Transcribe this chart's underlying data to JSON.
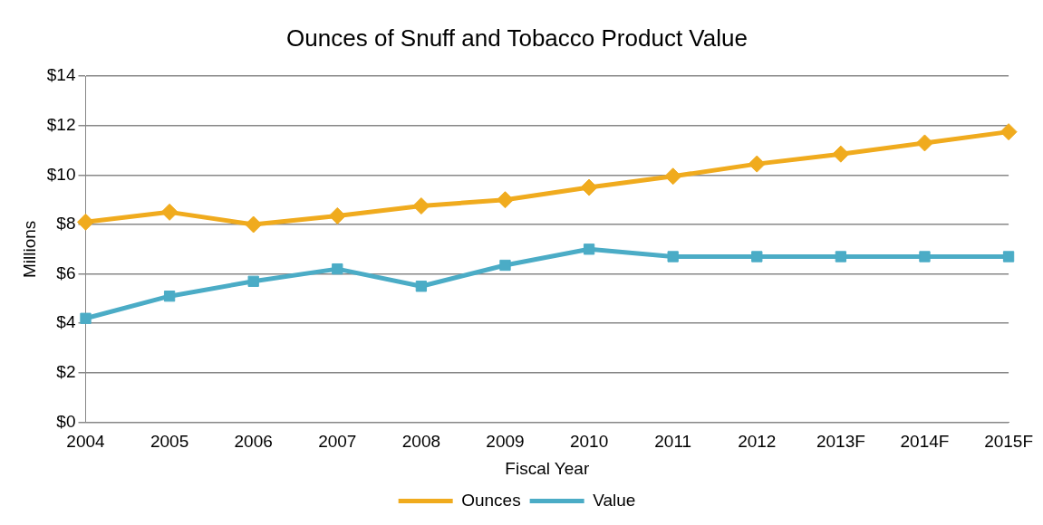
{
  "chart_data": {
    "type": "line",
    "title": "Ounces of Snuff and Tobacco Product Value",
    "xlabel": "Fiscal Year",
    "ylabel": "Millions",
    "categories": [
      "2004",
      "2005",
      "2006",
      "2007",
      "2008",
      "2009",
      "2010",
      "2011",
      "2012",
      "2013F",
      "2014F",
      "2015F"
    ],
    "series": [
      {
        "name": "Ounces",
        "color": "#f0ab1e",
        "marker": "diamond",
        "values": [
          8.1,
          8.5,
          8.0,
          8.35,
          8.75,
          9.0,
          9.5,
          9.95,
          10.45,
          10.85,
          11.3,
          11.75
        ]
      },
      {
        "name": "Value",
        "color": "#4bacc6",
        "marker": "square",
        "values": [
          4.2,
          5.1,
          5.7,
          6.2,
          5.5,
          6.35,
          7.0,
          6.7,
          6.7,
          6.7,
          6.7,
          6.7
        ]
      }
    ],
    "ylim": [
      0,
      14
    ],
    "yticks": [
      {
        "value": 0,
        "label": "$0"
      },
      {
        "value": 2,
        "label": "$2"
      },
      {
        "value": 4,
        "label": "$4"
      },
      {
        "value": 6,
        "label": "$6"
      },
      {
        "value": 8,
        "label": "$8"
      },
      {
        "value": 10,
        "label": "$10"
      },
      {
        "value": 12,
        "label": "$12"
      },
      {
        "value": 14,
        "label": "$14"
      }
    ],
    "grid": "y",
    "legend": "bottom",
    "line_style": "solid"
  }
}
